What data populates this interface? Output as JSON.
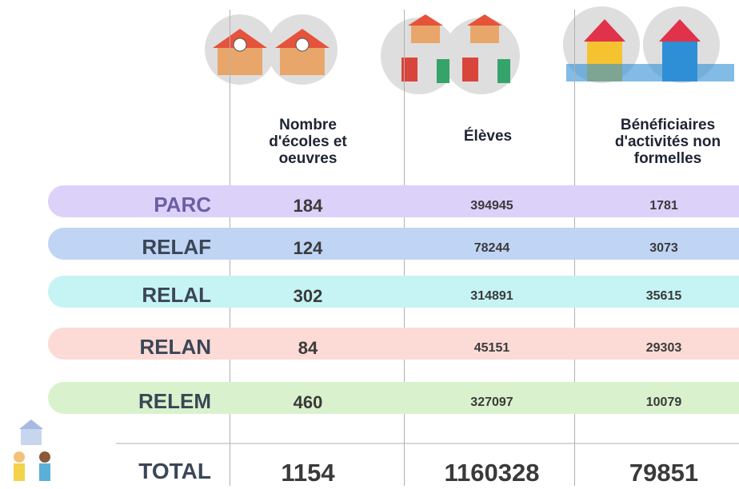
{
  "columns": [
    "Nombre d'écoles et oeuvres",
    "Élèves",
    "Bénéficiaires d'activités non formelles"
  ],
  "rows": [
    {
      "label": "PARC",
      "values": [
        184,
        394945,
        1781
      ]
    },
    {
      "label": "RELAF",
      "values": [
        124,
        78244,
        3073
      ]
    },
    {
      "label": "RELAL",
      "values": [
        302,
        314891,
        35615
      ]
    },
    {
      "label": "RELAN",
      "values": [
        84,
        45151,
        29303
      ]
    },
    {
      "label": "RELEM",
      "values": [
        460,
        327097,
        10079
      ]
    }
  ],
  "total": {
    "label": "TOTAL",
    "values": [
      1154,
      1160328,
      79851
    ]
  }
}
